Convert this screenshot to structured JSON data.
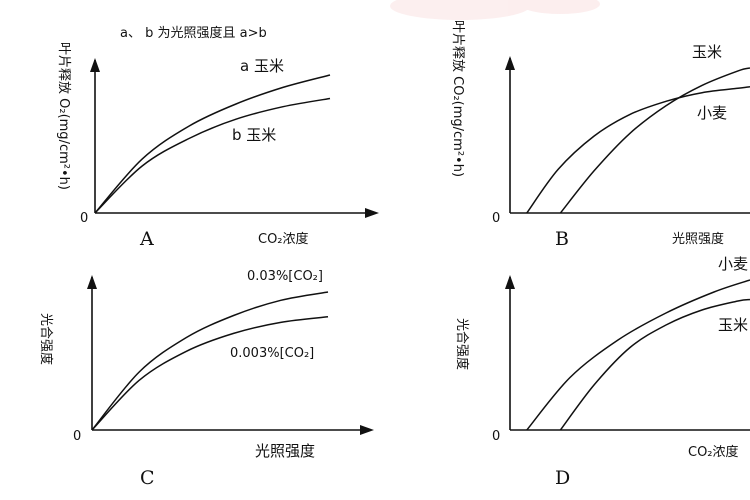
{
  "chart_data": [
    {
      "panel": "A",
      "type": "line",
      "annotation": "a、 b 为光照强度且 a>b",
      "ylabel": "叶片释放 O₂(mg/cm²•h)",
      "xlabel": "CO₂浓度",
      "origin": "0",
      "series": [
        {
          "name": "a 玉米",
          "x": [
            0,
            0.2,
            0.4,
            0.6,
            0.8,
            1.0
          ],
          "y": [
            0,
            0.39,
            0.63,
            0.79,
            0.91,
            1.0
          ]
        },
        {
          "name": "b 玉米",
          "x": [
            0,
            0.2,
            0.4,
            0.6,
            0.8,
            1.0
          ],
          "y": [
            0,
            0.34,
            0.54,
            0.68,
            0.77,
            0.83
          ]
        }
      ]
    },
    {
      "panel": "B",
      "type": "line",
      "ylabel": "叶片释放 CO₂(mg/cm²•h)",
      "xlabel": "光照强度",
      "origin": "0",
      "series": [
        {
          "name": "玉米",
          "x": [
            0.21,
            0.35,
            0.5,
            0.65,
            0.8,
            0.95,
            1.0
          ],
          "y": [
            0,
            0.29,
            0.55,
            0.74,
            0.88,
            0.98,
            1.0
          ]
        },
        {
          "name": "小麦",
          "x": [
            0.07,
            0.2,
            0.35,
            0.5,
            0.65,
            0.8,
            0.95,
            1.0
          ],
          "y": [
            0,
            0.3,
            0.53,
            0.68,
            0.77,
            0.83,
            0.86,
            0.87
          ]
        }
      ]
    },
    {
      "panel": "C",
      "type": "line",
      "ylabel": "光合强度",
      "xlabel": "光照强度",
      "origin": "0",
      "series": [
        {
          "name": "0.03%[CO₂]",
          "x": [
            0,
            0.2,
            0.4,
            0.6,
            0.8,
            1.0
          ],
          "y": [
            0,
            0.42,
            0.67,
            0.83,
            0.94,
            1.0
          ]
        },
        {
          "name": "0.003%[CO₂]",
          "x": [
            0,
            0.2,
            0.4,
            0.6,
            0.8,
            1.0
          ],
          "y": [
            0,
            0.36,
            0.57,
            0.7,
            0.78,
            0.82
          ]
        }
      ]
    },
    {
      "panel": "D",
      "type": "line",
      "ylabel": "光合强度",
      "xlabel": "CO₂浓度",
      "origin": "0",
      "series": [
        {
          "name": "小麦",
          "x": [
            0.07,
            0.25,
            0.45,
            0.65,
            0.85,
            1.0
          ],
          "y": [
            0,
            0.35,
            0.6,
            0.78,
            0.92,
            1.0
          ]
        },
        {
          "name": "玉米",
          "x": [
            0.21,
            0.35,
            0.5,
            0.65,
            0.8,
            0.95,
            1.0
          ],
          "y": [
            0,
            0.3,
            0.55,
            0.7,
            0.8,
            0.86,
            0.87
          ]
        }
      ]
    }
  ]
}
